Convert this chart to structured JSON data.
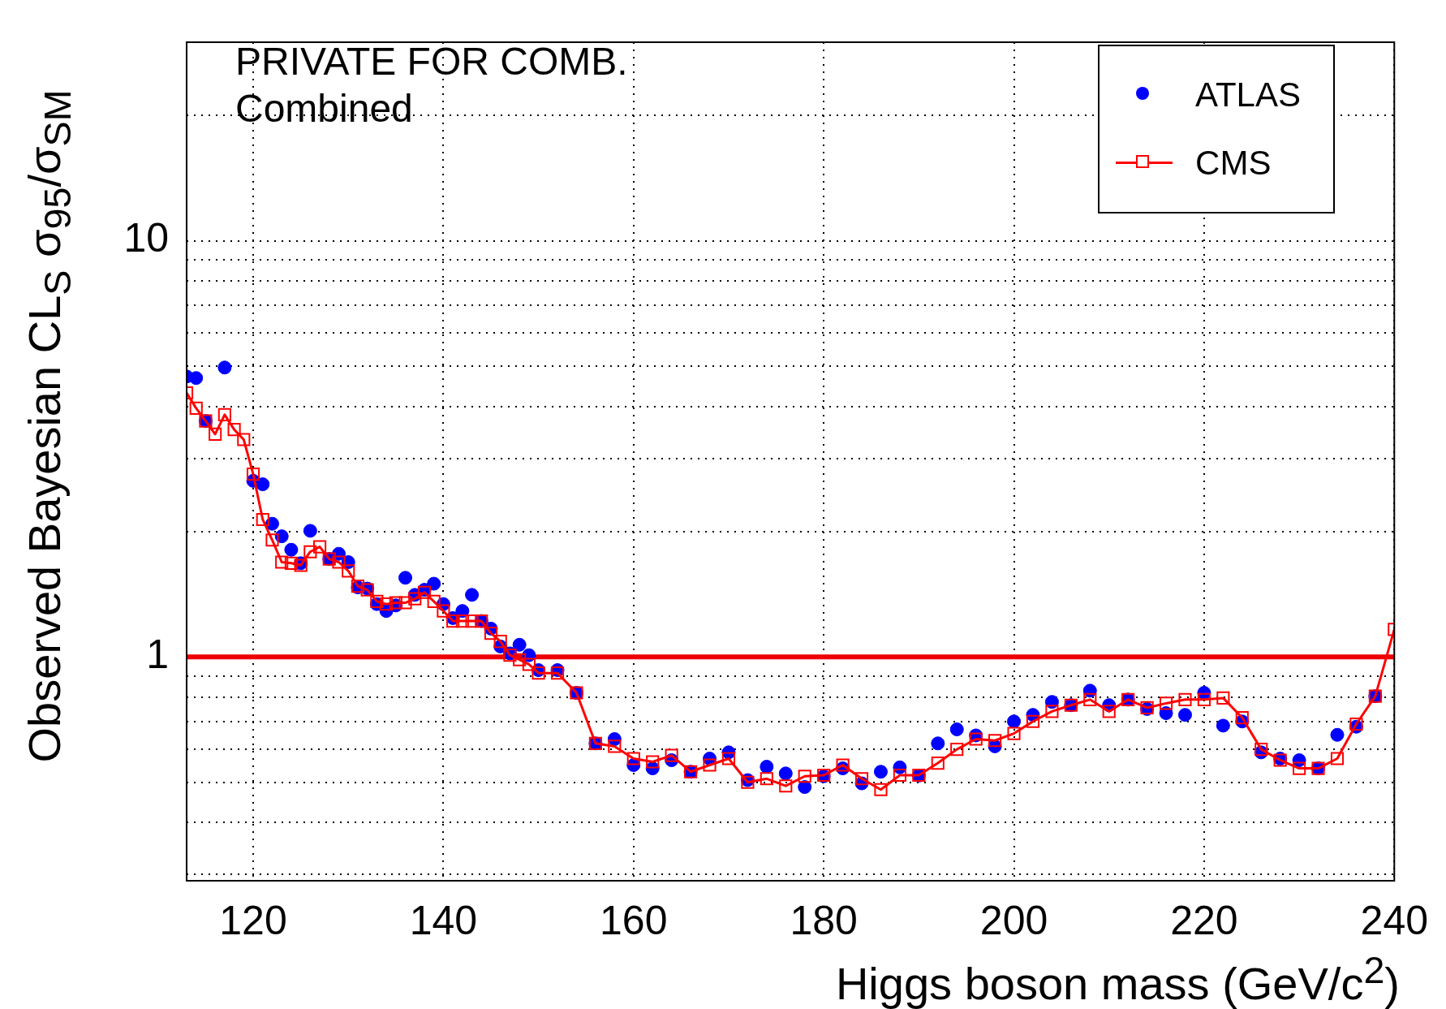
{
  "chart_data": {
    "type": "line",
    "title": "PRIVATE FOR COMB.",
    "subtitle": "Combined",
    "xlabel": "Higgs boson mass (GeV/c$^{2}$)",
    "ylabel": "Observed Bayesian CL$_{S}$ σ$_{95}$/σ$_{SM}$",
    "log": "y",
    "grid": true,
    "legend": "top right",
    "xlim": [
      113,
      240
    ],
    "xticks": [
      120,
      140,
      160,
      180,
      200,
      220,
      240
    ],
    "ylim": [
      0.29,
      30
    ],
    "yticks": [
      {
        "value": 0.3,
        "label": null
      },
      {
        "value": 0.4,
        "label": null
      },
      {
        "value": 0.5,
        "label": null
      },
      {
        "value": 0.6,
        "label": null
      },
      {
        "value": 0.7,
        "label": null
      },
      {
        "value": 0.8,
        "label": null
      },
      {
        "value": 0.9,
        "label": null
      },
      1,
      {
        "value": 2,
        "label": null
      },
      {
        "value": 3,
        "label": null
      },
      {
        "value": 4,
        "label": null
      },
      {
        "value": 5,
        "label": null
      },
      {
        "value": 6,
        "label": null
      },
      {
        "value": 7,
        "label": null
      },
      {
        "value": 8,
        "label": null
      },
      {
        "value": 9,
        "label": null
      },
      10,
      {
        "value": 20,
        "label": null
      }
    ],
    "ref_lines": [
      {
        "axis": "y",
        "value": 1,
        "color": "#ee0000"
      }
    ],
    "series": [
      {
        "name": "ATLAS",
        "type": "scatter",
        "marker": "circle",
        "color": "#0000ff",
        "x": [
          113,
          114,
          115,
          117,
          120,
          121,
          122,
          123,
          124,
          125,
          126,
          128,
          129,
          130,
          131,
          132,
          133,
          134,
          135,
          136,
          137,
          138,
          139,
          140,
          141,
          142,
          143,
          144,
          145,
          146,
          147,
          148,
          149,
          150,
          152,
          154,
          156,
          158,
          160,
          162,
          164,
          166,
          168,
          170,
          172,
          174,
          176,
          178,
          180,
          182,
          184,
          186,
          188,
          190,
          192,
          194,
          196,
          198,
          200,
          202,
          204,
          206,
          208,
          210,
          212,
          214,
          216,
          218,
          220,
          222,
          224,
          226,
          228,
          230,
          232,
          234,
          236,
          238
        ],
        "values": [
          4.72,
          4.68,
          3.69,
          4.96,
          2.65,
          2.6,
          2.09,
          1.95,
          1.81,
          1.68,
          2.01,
          1.72,
          1.77,
          1.69,
          1.47,
          1.46,
          1.34,
          1.29,
          1.33,
          1.55,
          1.41,
          1.45,
          1.5,
          1.34,
          1.24,
          1.29,
          1.41,
          1.22,
          1.17,
          1.06,
          1.02,
          1.07,
          1.01,
          0.93,
          0.93,
          0.82,
          0.62,
          0.635,
          0.55,
          0.54,
          0.565,
          0.53,
          0.57,
          0.59,
          0.506,
          0.545,
          0.525,
          0.487,
          0.517,
          0.54,
          0.497,
          0.53,
          0.543,
          0.519,
          0.62,
          0.67,
          0.648,
          0.61,
          0.7,
          0.726,
          0.78,
          0.766,
          0.83,
          0.766,
          0.79,
          0.75,
          0.733,
          0.726,
          0.82,
          0.684,
          0.7,
          0.59,
          0.57,
          0.565,
          0.54,
          0.65,
          0.68,
          0.805
        ]
      },
      {
        "name": "CMS",
        "marker": "square",
        "color": "#ff0000",
        "x": [
          113,
          114,
          115,
          116,
          117,
          118,
          119,
          120,
          121,
          122,
          123,
          124,
          125,
          126,
          127,
          128,
          129,
          130,
          131,
          132,
          133,
          134,
          135,
          136,
          137,
          138,
          139,
          140,
          141,
          142,
          143,
          144,
          145,
          146,
          147,
          148,
          149,
          150,
          152,
          154,
          156,
          158,
          160,
          162,
          164,
          166,
          168,
          170,
          172,
          174,
          176,
          178,
          180,
          182,
          184,
          186,
          188,
          190,
          192,
          194,
          196,
          198,
          200,
          202,
          204,
          206,
          208,
          210,
          212,
          214,
          216,
          218,
          220,
          222,
          224,
          226,
          228,
          230,
          232,
          234,
          236,
          238,
          240
        ],
        "values": [
          4.31,
          3.96,
          3.69,
          3.43,
          3.82,
          3.52,
          3.33,
          2.75,
          2.14,
          1.91,
          1.69,
          1.68,
          1.66,
          1.79,
          1.84,
          1.72,
          1.69,
          1.61,
          1.48,
          1.45,
          1.36,
          1.34,
          1.35,
          1.35,
          1.38,
          1.43,
          1.36,
          1.29,
          1.22,
          1.22,
          1.22,
          1.22,
          1.14,
          1.09,
          1.01,
          0.985,
          0.96,
          0.915,
          0.915,
          0.82,
          0.62,
          0.61,
          0.57,
          0.56,
          0.58,
          0.53,
          0.55,
          0.57,
          0.5,
          0.51,
          0.49,
          0.517,
          0.52,
          0.55,
          0.51,
          0.48,
          0.52,
          0.52,
          0.556,
          0.6,
          0.635,
          0.63,
          0.655,
          0.7,
          0.74,
          0.766,
          0.79,
          0.74,
          0.79,
          0.755,
          0.774,
          0.79,
          0.79,
          0.797,
          0.715,
          0.6,
          0.565,
          0.54,
          0.54,
          0.57,
          0.69,
          0.805,
          1.165
        ]
      }
    ]
  }
}
